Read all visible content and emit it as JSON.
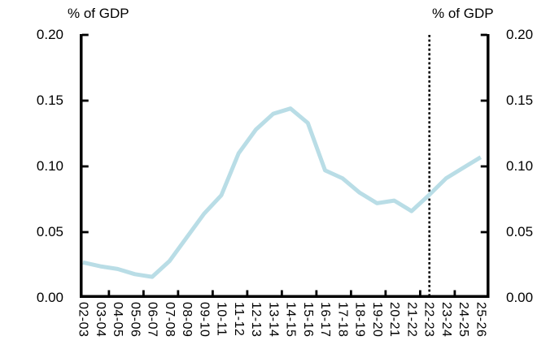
{
  "chart": {
    "left_axis_title": "% of GDP",
    "right_axis_title": "% of GDP"
  },
  "chart_data": {
    "type": "line",
    "categories": [
      "02-03",
      "03-04",
      "04-05",
      "05-06",
      "06-07",
      "07-08",
      "08-09",
      "09-10",
      "10-11",
      "11-12",
      "12-13",
      "13-14",
      "14-15",
      "15-16",
      "16-17",
      "17-18",
      "18-19",
      "19-20",
      "20-21",
      "21-22",
      "22-23",
      "23-24",
      "24-25",
      "25-26"
    ],
    "series": [
      {
        "name": "",
        "values": [
          0.027,
          0.024,
          0.022,
          0.018,
          0.016,
          0.028,
          0.046,
          0.064,
          0.078,
          0.11,
          0.128,
          0.14,
          0.144,
          0.133,
          0.097,
          0.091,
          0.08,
          0.072,
          0.074,
          0.066,
          0.078,
          0.091,
          0.099,
          0.107
        ]
      }
    ],
    "ylabel_left": "% of GDP",
    "ylabel_right": "% of GDP",
    "ylim": [
      0.0,
      0.2
    ],
    "ytick_values": [
      0.0,
      0.05,
      0.1,
      0.15,
      0.2
    ],
    "ytick_labels": [
      "0.00",
      "0.05",
      "0.10",
      "0.15",
      "0.20"
    ],
    "x_tick_interval": 2,
    "grid": "off",
    "legend": "none",
    "vline": {
      "category": "22-23",
      "style": "dotted",
      "color": "#000000"
    },
    "line_color": "#b9dde6",
    "axis_color": "#000000"
  }
}
